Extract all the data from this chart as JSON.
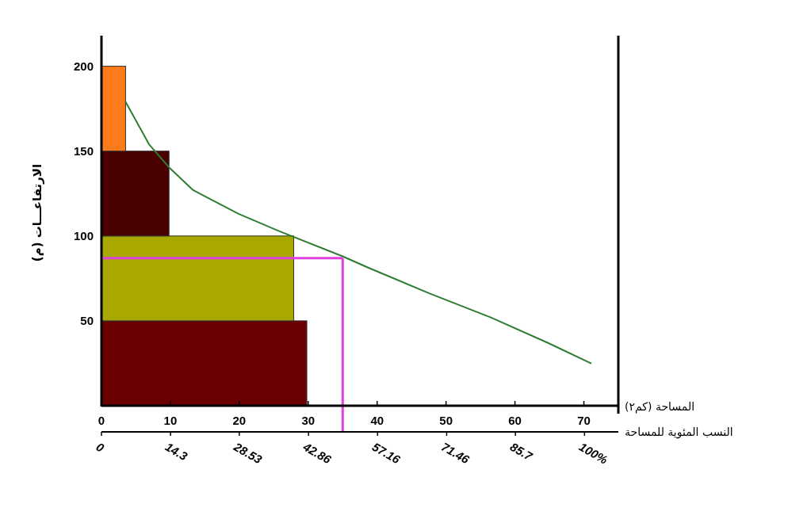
{
  "chart_data": {
    "type": "histogram",
    "orientation": "horizontal",
    "xlabel": "المساحة (كم٢)",
    "ylabel": "الارتفاعـــات (م)",
    "x2label": "النسب المئوية للمساحة",
    "xlim": [
      0,
      75
    ],
    "xticks": [
      0,
      10,
      20,
      30,
      40,
      50,
      60,
      70
    ],
    "ylim": [
      0,
      218
    ],
    "yticks": [
      50,
      100,
      150,
      200
    ],
    "x2lim": [
      0,
      107
    ],
    "x2ticks": [
      0,
      14.3,
      28.53,
      42.86,
      57.16,
      71.46,
      85.7,
      {
        "value": 100,
        "label": "100%"
      }
    ],
    "series": [
      {
        "bins": [
          0,
          50,
          100,
          150,
          200
        ],
        "values": [
          29.8,
          27.9,
          9.8,
          3.5
        ],
        "colors": [
          "#6b0000",
          "#a8a800",
          "#4a0000",
          "#ff7a1a"
        ]
      },
      {
        "type": "line",
        "color": "#2e7d32",
        "x": [
          179,
          154,
          140,
          127,
          113,
          103,
          88,
          81,
          66,
          52,
          37,
          25
        ],
        "values": [
          3.5,
          6.9,
          9.9,
          13.3,
          19.9,
          25.7,
          35,
          38.9,
          47.7,
          56.5,
          64.8,
          71
        ]
      }
    ],
    "ref_lines": [
      {
        "axis": "y",
        "value": 87,
        "color": "#e040e0"
      },
      {
        "axis": "x",
        "value": 35,
        "color": "#e040e0"
      }
    ]
  }
}
